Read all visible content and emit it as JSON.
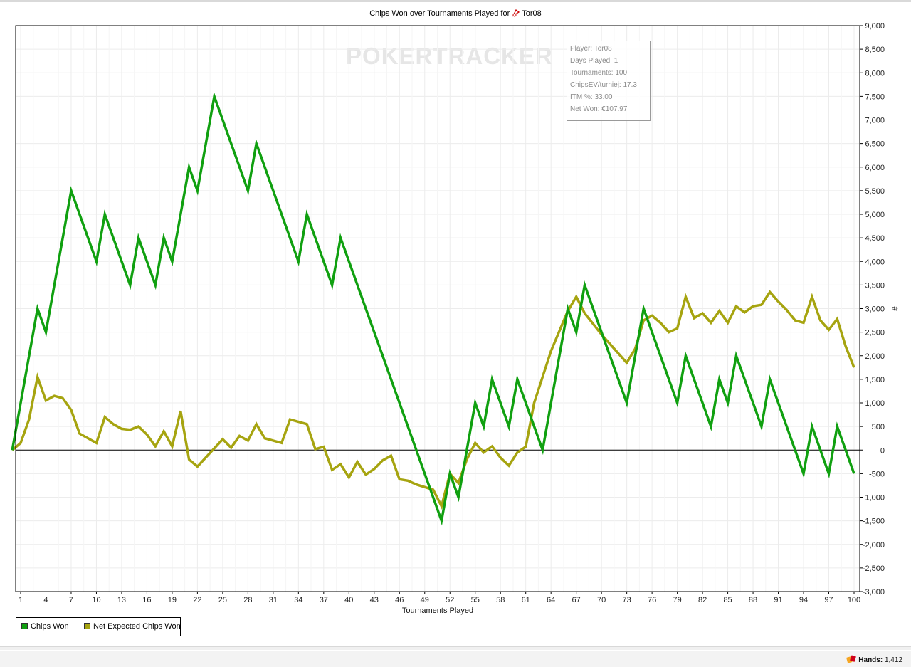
{
  "title": "Chips Won over Tournaments Played for",
  "player_name": "Tor08",
  "watermark": {
    "part1": "PO",
    "part2": "KER",
    "part3": "TRACKER"
  },
  "stats": [
    "Player: Tor08",
    "Days Played: 1",
    "Tournaments: 100",
    "ChipsEV/turniej: 17.3",
    "ITM %: 33.00",
    "Net Won: €107.97"
  ],
  "legend": {
    "items": [
      {
        "label": "Chips Won",
        "color": "#10a010"
      },
      {
        "label": "Net Expected Chips Won",
        "color": "#a6a410"
      }
    ]
  },
  "status": {
    "hands_label": "Hands:",
    "hands_value": "1,412"
  },
  "chart_data": {
    "type": "line",
    "title": "Chips Won over Tournaments Played for Tor08",
    "xlabel": "Tournaments Played",
    "ylabel": "#",
    "xlim": [
      1,
      100
    ],
    "ylim": [
      -3000,
      9000
    ],
    "x_ticks": [
      1,
      4,
      7,
      10,
      13,
      16,
      19,
      22,
      25,
      28,
      31,
      34,
      37,
      40,
      43,
      46,
      49,
      52,
      55,
      58,
      61,
      64,
      67,
      70,
      73,
      76,
      79,
      82,
      85,
      88,
      91,
      94,
      97,
      100
    ],
    "y_ticks": [
      9000,
      8500,
      8000,
      7500,
      7000,
      6500,
      6000,
      5500,
      5000,
      4500,
      4000,
      3500,
      3000,
      2500,
      2000,
      1500,
      1000,
      500,
      0,
      -500,
      -1000,
      -1500,
      -2000,
      -2500,
      -3000
    ],
    "y_tick_labels": [
      "9,000",
      "8,500",
      "8,000",
      "7,500",
      "7,000",
      "6,500",
      "6,000",
      "5,500",
      "5,000",
      "4,500",
      "4,000",
      "3,500",
      "3,000",
      "2,500",
      "2,000",
      "1,500",
      "1,000",
      "500",
      "0",
      "-500",
      "-1,000",
      "-1,500",
      "-2,000",
      "-2,500",
      "-3,000"
    ],
    "grid": true,
    "legend_position": "bottom-left",
    "series": [
      {
        "name": "Chips Won",
        "color": "#10a010",
        "x": [
          0,
          3,
          4,
          7,
          10,
          11,
          14,
          15,
          17,
          18,
          19,
          21,
          22,
          24,
          28,
          29,
          34,
          35,
          38,
          39,
          51,
          52,
          53,
          55,
          56,
          57,
          59,
          60,
          63,
          66,
          67,
          68,
          73,
          75,
          79,
          80,
          83,
          84,
          85,
          86,
          89,
          90,
          94,
          95,
          97,
          98,
          100
        ],
        "y": [
          0,
          3000,
          2500,
          5500,
          4000,
          5000,
          3500,
          4500,
          3500,
          4500,
          4000,
          6000,
          5500,
          7500,
          5500,
          6500,
          4000,
          5000,
          3500,
          4500,
          -1500,
          -500,
          -1000,
          1000,
          500,
          1500,
          500,
          1500,
          0,
          3000,
          2500,
          3500,
          1000,
          3000,
          1000,
          2000,
          500,
          1500,
          1000,
          2000,
          500,
          1500,
          -500,
          500,
          -500,
          500,
          -500
        ]
      },
      {
        "name": "Net Expected Chips Won",
        "color": "#a6a410",
        "x": [
          0,
          1,
          2,
          3,
          4,
          5,
          6,
          7,
          8,
          10,
          11,
          12,
          13,
          14,
          15,
          16,
          17,
          18,
          19,
          20,
          21,
          22,
          25,
          26,
          27,
          28,
          29,
          30,
          32,
          33,
          35,
          36,
          37,
          38,
          39,
          40,
          41,
          42,
          43,
          44,
          45,
          46,
          47,
          48,
          50,
          51,
          52,
          53,
          54,
          55,
          56,
          57,
          58,
          59,
          60,
          61,
          62,
          64,
          66,
          67,
          68,
          70,
          71,
          73,
          74,
          75,
          76,
          77,
          78,
          79,
          80,
          81,
          82,
          83,
          84,
          85,
          86,
          87,
          88,
          89,
          90,
          91,
          92,
          93,
          94,
          95,
          96,
          97,
          98,
          99,
          100
        ],
        "y": [
          0,
          150,
          650,
          1550,
          1050,
          1150,
          1100,
          850,
          350,
          150,
          700,
          550,
          450,
          430,
          500,
          330,
          80,
          400,
          80,
          830,
          -200,
          -350,
          230,
          50,
          300,
          200,
          550,
          250,
          150,
          650,
          550,
          20,
          70,
          -420,
          -300,
          -580,
          -250,
          -520,
          -400,
          -220,
          -120,
          -620,
          -650,
          -730,
          -840,
          -1190,
          -500,
          -700,
          -200,
          150,
          -50,
          80,
          -160,
          -330,
          -50,
          70,
          1000,
          2100,
          2950,
          3250,
          2900,
          2450,
          2250,
          1850,
          2150,
          2750,
          2850,
          2700,
          2500,
          2580,
          3250,
          2800,
          2900,
          2700,
          2950,
          2700,
          3050,
          2920,
          3050,
          3080,
          3350,
          3150,
          2970,
          2750,
          2700,
          3250,
          2750,
          2550,
          2780,
          2200,
          1750
        ]
      }
    ]
  }
}
